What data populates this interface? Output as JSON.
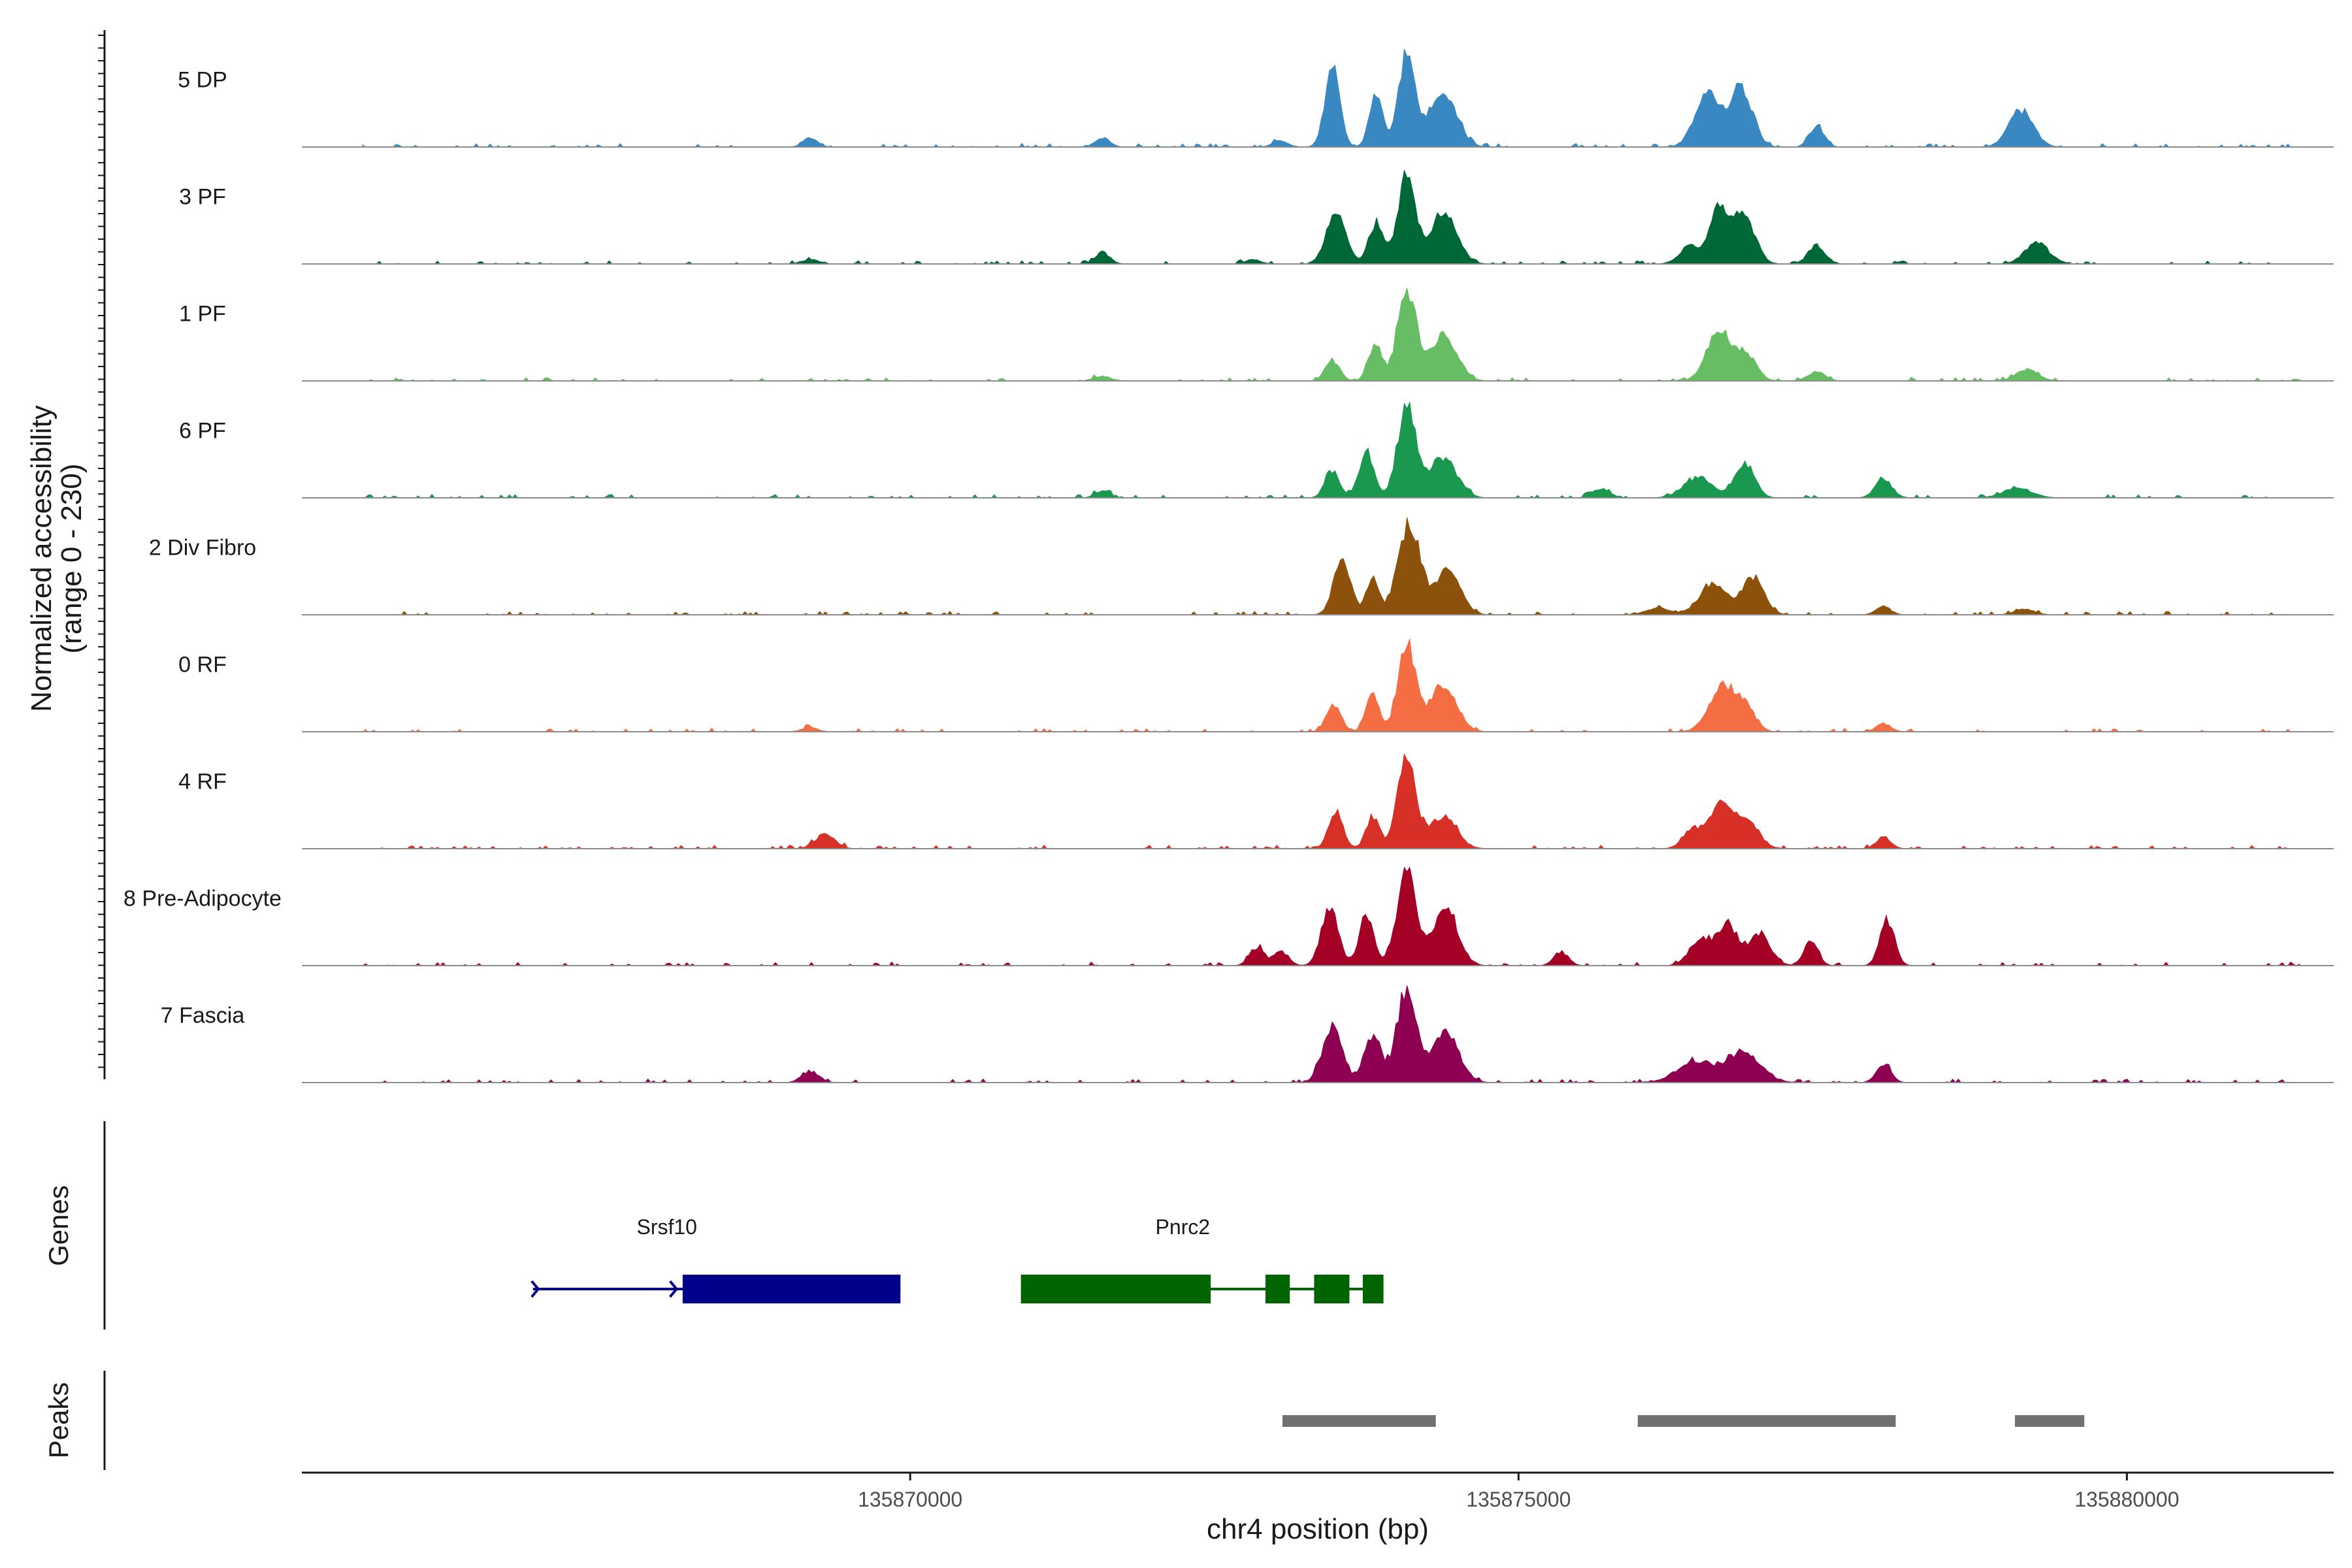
{
  "chart_data": {
    "type": "area",
    "ylabel_line1": "Normalized accessibility",
    "ylabel_line2": "(range 0 - 230)",
    "y_range": [
      0,
      230
    ],
    "xlabel": "chr4 position (bp)",
    "xlim": [
      135865000,
      135881700
    ],
    "x_ticks": [
      135870000,
      135875000,
      135880000
    ],
    "x_tick_labels": [
      "135870000",
      "135875000",
      "135880000"
    ],
    "tracks": [
      {
        "name": "5 DP",
        "color": "#3a88c2",
        "peaks": [
          [
            135873470,
            60,
            180
          ],
          [
            135873830,
            55,
            110
          ],
          [
            135874080,
            70,
            200
          ],
          [
            135874380,
            110,
            120
          ],
          [
            135876550,
            100,
            120
          ],
          [
            135876830,
            90,
            130
          ],
          [
            135877450,
            60,
            45
          ],
          [
            135879130,
            100,
            80
          ],
          [
            135869180,
            60,
            20
          ],
          [
            135871580,
            60,
            20
          ],
          [
            135873040,
            60,
            14
          ]
        ]
      },
      {
        "name": "3 PF",
        "color": "#006837",
        "peaks": [
          [
            135873500,
            80,
            110
          ],
          [
            135873830,
            60,
            90
          ],
          [
            135874080,
            70,
            200
          ],
          [
            135874380,
            110,
            110
          ],
          [
            135876420,
            90,
            40
          ],
          [
            135876650,
            70,
            120
          ],
          [
            135876850,
            90,
            110
          ],
          [
            135877450,
            70,
            40
          ],
          [
            135879260,
            100,
            45
          ],
          [
            135871580,
            60,
            25
          ],
          [
            135869180,
            70,
            10
          ],
          [
            135872820,
            60,
            10
          ]
        ]
      },
      {
        "name": "1 PF",
        "color": "#66bd63",
        "peaks": [
          [
            135873470,
            60,
            45
          ],
          [
            135873820,
            55,
            80
          ],
          [
            135874080,
            75,
            200
          ],
          [
            135874380,
            110,
            100
          ],
          [
            135876650,
            100,
            110
          ],
          [
            135876880,
            80,
            55
          ],
          [
            135877450,
            70,
            20
          ],
          [
            135879180,
            90,
            25
          ],
          [
            135871580,
            70,
            10
          ]
        ]
      },
      {
        "name": "6 PF",
        "color": "#1a9850",
        "peaks": [
          [
            135873470,
            60,
            60
          ],
          [
            135873750,
            60,
            100
          ],
          [
            135874080,
            75,
            200
          ],
          [
            135874380,
            110,
            90
          ],
          [
            135876480,
            120,
            45
          ],
          [
            135876860,
            80,
            75
          ],
          [
            135878000,
            70,
            40
          ],
          [
            135879100,
            120,
            20
          ],
          [
            135871580,
            60,
            15
          ],
          [
            135875680,
            70,
            20
          ]
        ]
      },
      {
        "name": "2 Div Fibro",
        "color": "#8c510a",
        "peaks": [
          [
            135873550,
            70,
            120
          ],
          [
            135873800,
            50,
            80
          ],
          [
            135874100,
            90,
            200
          ],
          [
            135874420,
            100,
            100
          ],
          [
            135876600,
            110,
            70
          ],
          [
            135876930,
            90,
            80
          ],
          [
            135878000,
            60,
            18
          ],
          [
            135876150,
            100,
            15
          ],
          [
            135879160,
            80,
            12
          ]
        ]
      },
      {
        "name": "0 RF",
        "color": "#f46d43",
        "peaks": [
          [
            135873480,
            60,
            60
          ],
          [
            135873800,
            55,
            80
          ],
          [
            135874080,
            70,
            200
          ],
          [
            135874380,
            110,
            100
          ],
          [
            135876680,
            110,
            100
          ],
          [
            135876870,
            80,
            45
          ],
          [
            135878000,
            60,
            18
          ],
          [
            135869180,
            60,
            10
          ]
        ]
      },
      {
        "name": "4 RF",
        "color": "#d73027",
        "peaks": [
          [
            135873500,
            60,
            80
          ],
          [
            135873800,
            55,
            70
          ],
          [
            135874080,
            75,
            200
          ],
          [
            135874380,
            110,
            70
          ],
          [
            135876430,
            80,
            40
          ],
          [
            135876680,
            100,
            100
          ],
          [
            135876900,
            90,
            50
          ],
          [
            135878000,
            60,
            25
          ],
          [
            135869300,
            80,
            32
          ]
        ]
      },
      {
        "name": "8 Pre-Adipocyte",
        "color": "#a50026",
        "peaks": [
          [
            135873450,
            70,
            120
          ],
          [
            135873750,
            60,
            110
          ],
          [
            135874080,
            80,
            200
          ],
          [
            135874400,
            100,
            130
          ],
          [
            135876500,
            90,
            60
          ],
          [
            135876720,
            80,
            90
          ],
          [
            135876980,
            90,
            70
          ],
          [
            135877400,
            60,
            50
          ],
          [
            135878030,
            60,
            100
          ],
          [
            135872850,
            60,
            40
          ],
          [
            135873050,
            60,
            30
          ],
          [
            135875350,
            60,
            30
          ]
        ]
      },
      {
        "name": "7 Fascia",
        "color": "#8e0152",
        "peaks": [
          [
            135873470,
            80,
            120
          ],
          [
            135873800,
            70,
            100
          ],
          [
            135874080,
            80,
            200
          ],
          [
            135874400,
            110,
            110
          ],
          [
            135876450,
            150,
            45
          ],
          [
            135876850,
            140,
            65
          ],
          [
            135878000,
            60,
            40
          ],
          [
            135869180,
            70,
            25
          ]
        ]
      }
    ],
    "genes": [
      {
        "name": "Srsf10",
        "color": "#00008b",
        "strand": "+",
        "line_start": 135866900,
        "line_end": 135869920,
        "exons": [
          [
            135868130,
            135869920
          ]
        ],
        "label_x": 135868000
      },
      {
        "name": "Pnrc2",
        "color": "#006400",
        "strand": "+",
        "line_start": 135870910,
        "line_end": 135873750,
        "exons": [
          [
            135870910,
            135872470
          ],
          [
            135872920,
            135873120
          ],
          [
            135873320,
            135873610
          ],
          [
            135873720,
            135873890
          ]
        ],
        "label_x": 135872240
      }
    ],
    "peak_regions": [
      {
        "start": 135873060,
        "end": 135874320
      },
      {
        "start": 135875980,
        "end": 135878100
      },
      {
        "start": 135879080,
        "end": 135879650
      }
    ]
  },
  "panels": {
    "genes_label": "Genes",
    "peaks_label": "Peaks"
  },
  "colors": {
    "axis": "#1a1a1a",
    "baseline": "#8c8c8c",
    "peak_region": "#707070"
  }
}
